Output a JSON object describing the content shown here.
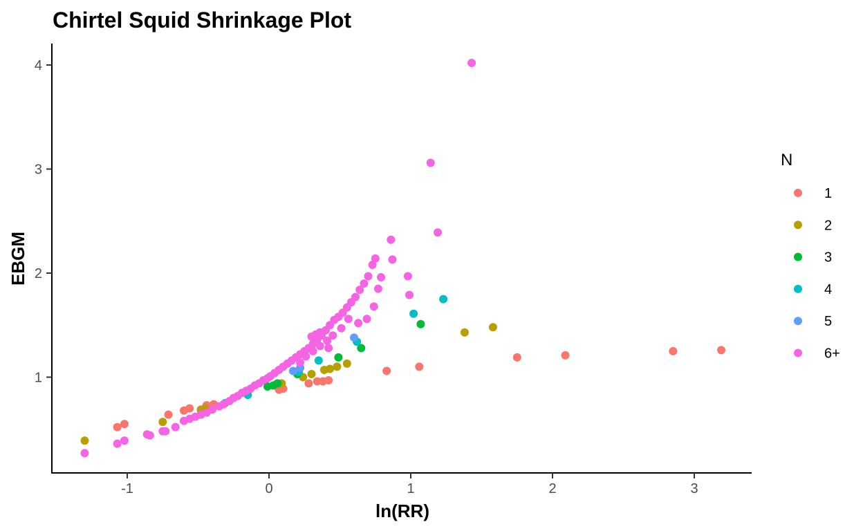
{
  "chart_data": {
    "type": "scatter",
    "title": "Chirtel Squid Shrinkage Plot",
    "xlabel": "ln(RR)",
    "ylabel": "EBGM",
    "xlim": [
      -1.5,
      3.4
    ],
    "ylim": [
      0.1,
      4.2
    ],
    "xticks": [
      -1,
      0,
      1,
      2,
      3
    ],
    "yticks": [
      1,
      2,
      3,
      4
    ],
    "grid": false,
    "legend": {
      "title": "N",
      "position": "right"
    },
    "series": [
      {
        "name": "1",
        "color": "#F8766D",
        "x": [
          -1.07,
          -1.02,
          -0.71,
          -0.6,
          -0.56,
          -0.48,
          -0.44,
          -0.42,
          -0.39,
          0.07,
          0.1,
          0.28,
          0.34,
          0.38,
          0.42,
          0.83,
          1.06,
          1.75,
          2.09,
          2.85,
          3.19
        ],
        "y": [
          0.52,
          0.55,
          0.64,
          0.68,
          0.7,
          0.69,
          0.73,
          0.71,
          0.74,
          0.88,
          0.89,
          0.94,
          0.96,
          0.96,
          0.97,
          1.06,
          1.1,
          1.19,
          1.21,
          1.25,
          1.26
        ]
      },
      {
        "name": "2",
        "color": "#B79F00",
        "x": [
          -1.3,
          -0.75,
          -0.48,
          -0.45,
          0.05,
          0.09,
          0.24,
          0.3,
          0.39,
          0.43,
          0.48,
          0.55,
          1.38,
          1.58
        ],
        "y": [
          0.39,
          0.57,
          0.68,
          0.7,
          0.93,
          0.94,
          1.0,
          1.03,
          1.07,
          1.08,
          1.1,
          1.13,
          1.43,
          1.48
        ]
      },
      {
        "name": "3",
        "color": "#00BA38",
        "x": [
          -0.01,
          0.03,
          0.06,
          0.2,
          0.49,
          0.65,
          1.07
        ],
        "y": [
          0.91,
          0.92,
          0.94,
          1.03,
          1.19,
          1.28,
          1.51
        ]
      },
      {
        "name": "4",
        "color": "#00BFC4",
        "x": [
          -0.31,
          -0.15,
          0.21,
          0.35,
          0.62,
          1.02,
          1.23
        ],
        "y": [
          0.75,
          0.83,
          1.05,
          1.16,
          1.34,
          1.61,
          1.75
        ]
      },
      {
        "name": "5",
        "color": "#619CFF",
        "x": [
          0.17,
          0.22,
          0.6
        ],
        "y": [
          1.06,
          1.09,
          1.38
        ]
      },
      {
        "name": "6+",
        "color": "#F564E3",
        "x": [
          -1.3,
          -1.07,
          -1.02,
          -0.86,
          -0.84,
          -0.75,
          -0.73,
          -0.66,
          -0.6,
          -0.56,
          -0.52,
          -0.48,
          -0.44,
          -0.4,
          -0.35,
          -0.32,
          -0.28,
          -0.25,
          -0.22,
          -0.19,
          -0.16,
          -0.13,
          -0.1,
          -0.07,
          -0.04,
          -0.01,
          0.01,
          0.04,
          0.07,
          0.1,
          0.13,
          0.16,
          0.19,
          0.22,
          0.25,
          0.28,
          0.31,
          0.34,
          0.37,
          0.4,
          0.43,
          0.46,
          0.49,
          0.52,
          0.55,
          0.58,
          0.61,
          0.64,
          0.67,
          0.7,
          0.73,
          0.75,
          0.79,
          0.86,
          0.98,
          1.14,
          1.19,
          1.43,
          0.22,
          0.26,
          0.31,
          0.36,
          0.41,
          0.45,
          0.51,
          0.56,
          0.63,
          0.69,
          0.74,
          0.77,
          0.87,
          0.99,
          0.3,
          0.33,
          0.36,
          0.42
        ],
        "y": [
          0.27,
          0.36,
          0.39,
          0.45,
          0.44,
          0.48,
          0.48,
          0.52,
          0.58,
          0.6,
          0.62,
          0.64,
          0.66,
          0.69,
          0.72,
          0.74,
          0.77,
          0.8,
          0.82,
          0.85,
          0.87,
          0.89,
          0.92,
          0.94,
          0.97,
          0.99,
          1.01,
          1.04,
          1.07,
          1.1,
          1.13,
          1.16,
          1.19,
          1.22,
          1.25,
          1.28,
          1.32,
          1.36,
          1.4,
          1.45,
          1.5,
          1.55,
          1.58,
          1.62,
          1.67,
          1.72,
          1.77,
          1.84,
          1.9,
          1.97,
          2.08,
          2.14,
          1.96,
          2.32,
          1.97,
          3.06,
          2.39,
          4.02,
          1.14,
          1.2,
          1.25,
          1.3,
          1.35,
          1.4,
          1.47,
          1.56,
          1.52,
          1.56,
          1.68,
          1.85,
          2.13,
          1.79,
          1.39,
          1.41,
          1.43,
          1.28
        ]
      }
    ]
  }
}
